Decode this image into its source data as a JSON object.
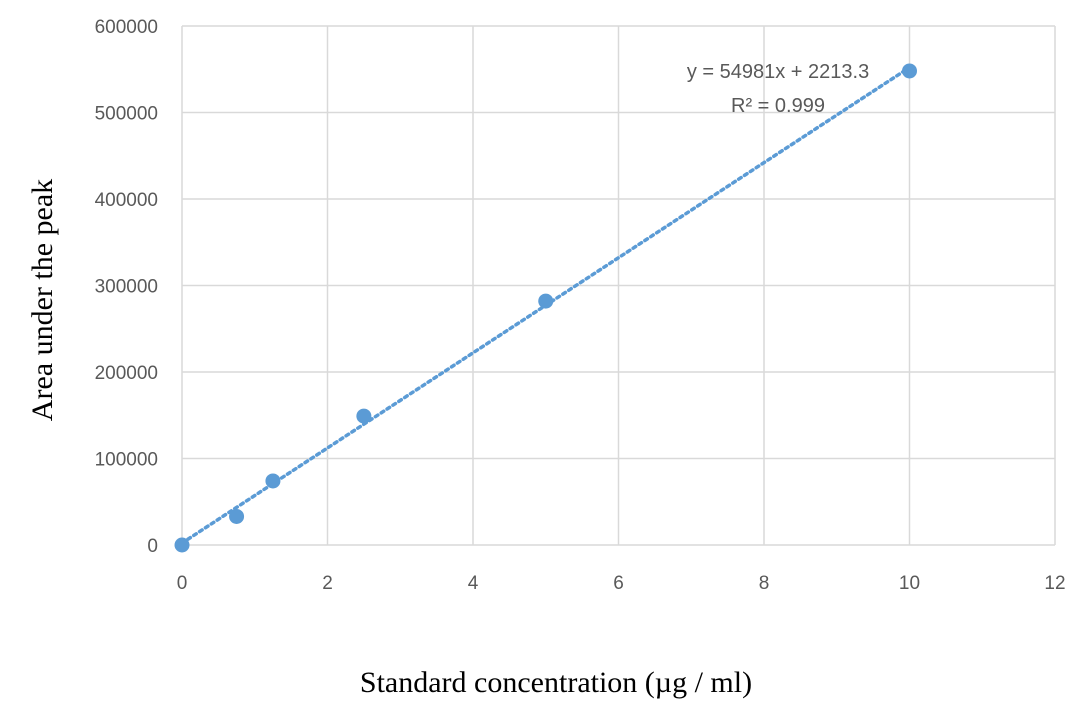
{
  "chart_data": {
    "type": "scatter",
    "title": "",
    "xlabel": "Standard concentration (µg  / ml)",
    "ylabel": "Area under the peak",
    "xlim": [
      0,
      12
    ],
    "ylim": [
      0,
      600000
    ],
    "x_ticks": [
      0,
      2,
      4,
      6,
      8,
      10,
      12
    ],
    "y_ticks": [
      0,
      100000,
      200000,
      300000,
      400000,
      500000,
      600000
    ],
    "x_tick_labels": [
      "0",
      "2",
      "4",
      "6",
      "8",
      "10",
      "12"
    ],
    "y_tick_labels": [
      "0",
      "100000",
      "200000",
      "300000",
      "400000",
      "500000",
      "600000"
    ],
    "grid": true,
    "series": [
      {
        "x": [
          0,
          0.75,
          1.25,
          2.5,
          5,
          10
        ],
        "y": [
          0,
          33000,
          74000,
          149000,
          282000,
          548000
        ],
        "color": "#5B9BD5",
        "trendline": {
          "type": "linear",
          "slope": 54981,
          "intercept": 2213.3,
          "style": "dotted",
          "equation_text": "y = 54981x + 2213.3",
          "r2_text": "R² = 0.999"
        }
      }
    ],
    "colors": {
      "point": "#5B9BD5",
      "trend": "#5B9BD5",
      "grid": "#d9d9d9",
      "tick_text": "#595959"
    }
  }
}
